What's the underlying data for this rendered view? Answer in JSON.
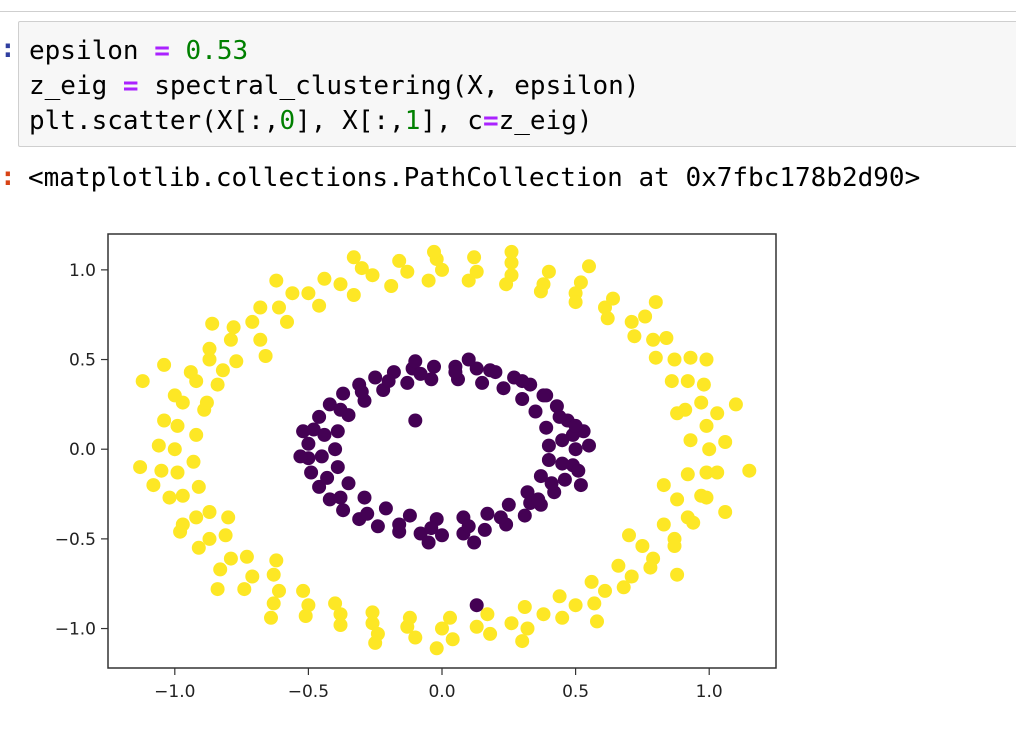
{
  "notebook": {
    "input_cell": {
      "lines": [
        [
          {
            "t": "epsilon "
          },
          {
            "t": "=",
            "c": "op"
          },
          {
            "t": " "
          },
          {
            "t": "0.53",
            "c": "num"
          }
        ],
        [
          {
            "t": "z_eig "
          },
          {
            "t": "=",
            "c": "op"
          },
          {
            "t": " spectral_clustering(X, epsilon)"
          }
        ],
        [
          {
            "t": "plt.scatter(X[:,"
          },
          {
            "t": "0",
            "c": "num"
          },
          {
            "t": "], X[:,"
          },
          {
            "t": "1",
            "c": "num"
          },
          {
            "t": "], c"
          },
          {
            "t": "=",
            "c": "op"
          },
          {
            "t": "z_eig)"
          }
        ]
      ]
    },
    "output_text": "<matplotlib.collections.PathCollection at 0x7fbc178b2d90>"
  },
  "colors": {
    "inner_cluster": "#440154",
    "outer_cluster": "#fde725"
  },
  "chart_data": {
    "type": "scatter",
    "title": "",
    "xlabel": "",
    "ylabel": "",
    "xlim": [
      -1.25,
      1.25
    ],
    "ylim": [
      -1.22,
      1.2
    ],
    "x_ticks": [
      -1.0,
      -0.5,
      0.0,
      0.5,
      1.0
    ],
    "y_ticks": [
      1.0,
      0.5,
      0.0,
      -0.5,
      -1.0
    ],
    "x_tick_labels": [
      "−1.0",
      "−0.5",
      "0.0",
      "0.5",
      "1.0"
    ],
    "y_tick_labels": [
      "1.0",
      "0.5",
      "0.0",
      "−0.5",
      "−1.0"
    ],
    "grid": false,
    "series": [
      {
        "color": "#fde725",
        "points": [
          [
            1.0,
            0.0
          ],
          [
            0.99,
            0.13
          ],
          [
            0.97,
            0.26
          ],
          [
            0.92,
            0.38
          ],
          [
            0.87,
            0.5
          ],
          [
            0.79,
            0.61
          ],
          [
            0.71,
            0.71
          ],
          [
            0.61,
            0.79
          ],
          [
            0.5,
            0.87
          ],
          [
            0.38,
            0.92
          ],
          [
            0.26,
            0.97
          ],
          [
            0.13,
            0.99
          ],
          [
            0.0,
            1.0
          ],
          [
            -0.13,
            0.99
          ],
          [
            -0.26,
            0.97
          ],
          [
            -0.38,
            0.92
          ],
          [
            -0.5,
            0.87
          ],
          [
            -0.61,
            0.79
          ],
          [
            -0.71,
            0.71
          ],
          [
            -0.79,
            0.61
          ],
          [
            -0.87,
            0.5
          ],
          [
            -0.92,
            0.38
          ],
          [
            -0.97,
            0.26
          ],
          [
            -0.99,
            0.13
          ],
          [
            -1.0,
            0.0
          ],
          [
            -0.99,
            -0.13
          ],
          [
            -0.97,
            -0.26
          ],
          [
            -0.92,
            -0.38
          ],
          [
            -0.87,
            -0.5
          ],
          [
            -0.79,
            -0.61
          ],
          [
            -0.71,
            -0.71
          ],
          [
            -0.61,
            -0.79
          ],
          [
            -0.5,
            -0.87
          ],
          [
            -0.38,
            -0.92
          ],
          [
            -0.26,
            -0.97
          ],
          [
            -0.13,
            -0.99
          ],
          [
            0.0,
            -1.0
          ],
          [
            0.13,
            -0.99
          ],
          [
            0.26,
            -0.97
          ],
          [
            0.38,
            -0.92
          ],
          [
            0.5,
            -0.87
          ],
          [
            0.61,
            -0.79
          ],
          [
            0.71,
            -0.71
          ],
          [
            0.79,
            -0.61
          ],
          [
            0.87,
            -0.5
          ],
          [
            0.92,
            -0.38
          ],
          [
            0.97,
            -0.26
          ],
          [
            0.99,
            -0.13
          ],
          [
            1.06,
            0.04
          ],
          [
            1.03,
            0.2
          ],
          [
            0.98,
            0.36
          ],
          [
            0.93,
            0.51
          ],
          [
            0.84,
            0.62
          ],
          [
            0.76,
            0.74
          ],
          [
            0.64,
            0.84
          ],
          [
            0.52,
            0.93
          ],
          [
            0.4,
            0.99
          ],
          [
            0.26,
            1.04
          ],
          [
            0.12,
            1.07
          ],
          [
            -0.02,
            1.06
          ],
          [
            -0.16,
            1.05
          ],
          [
            -0.3,
            1.01
          ],
          [
            -0.44,
            0.95
          ],
          [
            -0.56,
            0.87
          ],
          [
            -0.68,
            0.79
          ],
          [
            -0.78,
            0.68
          ],
          [
            -0.87,
            0.56
          ],
          [
            -0.94,
            0.43
          ],
          [
            -1.0,
            0.3
          ],
          [
            -1.04,
            0.16
          ],
          [
            -1.06,
            0.02
          ],
          [
            -1.05,
            -0.12
          ],
          [
            -1.02,
            -0.27
          ],
          [
            -0.97,
            -0.42
          ],
          [
            -0.91,
            -0.55
          ],
          [
            -0.83,
            -0.67
          ],
          [
            -0.74,
            -0.78
          ],
          [
            -0.63,
            -0.86
          ],
          [
            -0.51,
            -0.93
          ],
          [
            -0.38,
            -0.98
          ],
          [
            -0.24,
            -1.03
          ],
          [
            -0.1,
            -1.05
          ],
          [
            0.04,
            -1.06
          ],
          [
            0.18,
            -1.03
          ],
          [
            0.32,
            -1.0
          ],
          [
            0.45,
            -0.94
          ],
          [
            0.57,
            -0.86
          ],
          [
            0.68,
            -0.77
          ],
          [
            0.78,
            -0.66
          ],
          [
            0.87,
            -0.54
          ],
          [
            0.94,
            -0.41
          ],
          [
            0.99,
            -0.27
          ],
          [
            1.03,
            -0.13
          ],
          [
            0.93,
            0.05
          ],
          [
            0.91,
            0.22
          ],
          [
            0.86,
            0.38
          ],
          [
            0.8,
            0.51
          ],
          [
            0.72,
            0.63
          ],
          [
            0.62,
            0.73
          ],
          [
            0.5,
            0.82
          ],
          [
            0.37,
            0.88
          ],
          [
            0.24,
            0.92
          ],
          [
            0.1,
            0.94
          ],
          [
            -0.05,
            0.94
          ],
          [
            -0.19,
            0.91
          ],
          [
            -0.33,
            0.86
          ],
          [
            -0.46,
            0.8
          ],
          [
            -0.58,
            0.71
          ],
          [
            -0.68,
            0.61
          ],
          [
            -0.77,
            0.49
          ],
          [
            -0.84,
            0.36
          ],
          [
            -0.89,
            0.22
          ],
          [
            -0.92,
            0.08
          ],
          [
            -0.93,
            -0.07
          ],
          [
            -0.91,
            -0.21
          ],
          [
            -0.87,
            -0.35
          ],
          [
            -0.81,
            -0.48
          ],
          [
            -0.73,
            -0.6
          ],
          [
            -0.63,
            -0.7
          ],
          [
            -0.52,
            -0.79
          ],
          [
            -0.4,
            -0.86
          ],
          [
            -0.26,
            -0.91
          ],
          [
            -0.12,
            -0.94
          ],
          [
            0.03,
            -0.94
          ],
          [
            0.17,
            -0.92
          ],
          [
            0.31,
            -0.88
          ],
          [
            0.44,
            -0.82
          ],
          [
            0.56,
            -0.74
          ],
          [
            0.66,
            -0.65
          ],
          [
            0.75,
            -0.54
          ],
          [
            0.83,
            -0.42
          ],
          [
            0.88,
            -0.28
          ],
          [
            0.92,
            -0.14
          ],
          [
            -1.12,
            0.38
          ],
          [
            -1.13,
            -0.1
          ],
          [
            -1.08,
            -0.2
          ],
          [
            -0.98,
            -0.46
          ],
          [
            -0.84,
            -0.78
          ],
          [
            -0.64,
            -0.94
          ],
          [
            -0.25,
            -1.08
          ],
          [
            -0.02,
            -1.11
          ],
          [
            0.3,
            -1.07
          ],
          [
            0.58,
            -0.96
          ],
          [
            0.88,
            -0.7
          ],
          [
            1.06,
            -0.35
          ],
          [
            1.15,
            -0.12
          ],
          [
            1.1,
            0.25
          ],
          [
            0.99,
            0.5
          ],
          [
            0.8,
            0.82
          ],
          [
            0.55,
            1.02
          ],
          [
            0.26,
            1.1
          ],
          [
            -0.03,
            1.1
          ],
          [
            -0.33,
            1.07
          ],
          [
            -0.62,
            0.94
          ],
          [
            -0.86,
            0.7
          ],
          [
            -1.04,
            0.47
          ],
          [
            -0.88,
            0.26
          ],
          [
            -0.82,
            0.44
          ],
          [
            -0.66,
            0.52
          ],
          [
            0.88,
            0.2
          ],
          [
            0.83,
            -0.2
          ],
          [
            0.7,
            -0.48
          ],
          [
            -0.8,
            -0.38
          ],
          [
            -0.62,
            -0.62
          ]
        ]
      },
      {
        "color": "#440154",
        "points": [
          [
            0.5,
            0.0
          ],
          [
            0.49,
            0.08
          ],
          [
            0.47,
            0.16
          ],
          [
            0.43,
            0.24
          ],
          [
            0.38,
            0.3
          ],
          [
            0.33,
            0.36
          ],
          [
            0.27,
            0.4
          ],
          [
            0.2,
            0.43
          ],
          [
            0.13,
            0.45
          ],
          [
            0.05,
            0.46
          ],
          [
            -0.03,
            0.46
          ],
          [
            -0.11,
            0.45
          ],
          [
            -0.18,
            0.43
          ],
          [
            -0.25,
            0.4
          ],
          [
            -0.31,
            0.36
          ],
          [
            -0.37,
            0.31
          ],
          [
            -0.42,
            0.25
          ],
          [
            -0.46,
            0.18
          ],
          [
            -0.48,
            0.11
          ],
          [
            -0.5,
            0.03
          ],
          [
            -0.5,
            -0.05
          ],
          [
            -0.49,
            -0.13
          ],
          [
            -0.46,
            -0.21
          ],
          [
            -0.42,
            -0.28
          ],
          [
            -0.37,
            -0.34
          ],
          [
            -0.31,
            -0.39
          ],
          [
            -0.24,
            -0.43
          ],
          [
            -0.16,
            -0.46
          ],
          [
            -0.08,
            -0.47
          ],
          [
            0.0,
            -0.48
          ],
          [
            0.08,
            -0.47
          ],
          [
            0.16,
            -0.45
          ],
          [
            0.24,
            -0.42
          ],
          [
            0.31,
            -0.37
          ],
          [
            0.37,
            -0.31
          ],
          [
            0.42,
            -0.24
          ],
          [
            0.46,
            -0.17
          ],
          [
            0.49,
            -0.09
          ],
          [
            0.4,
            0.02
          ],
          [
            0.39,
            0.12
          ],
          [
            0.35,
            0.21
          ],
          [
            0.3,
            0.28
          ],
          [
            0.23,
            0.34
          ],
          [
            0.15,
            0.37
          ],
          [
            0.06,
            0.39
          ],
          [
            -0.04,
            0.39
          ],
          [
            -0.13,
            0.37
          ],
          [
            -0.22,
            0.33
          ],
          [
            -0.29,
            0.27
          ],
          [
            -0.35,
            0.19
          ],
          [
            -0.39,
            0.1
          ],
          [
            -0.4,
            0.0
          ],
          [
            -0.39,
            -0.1
          ],
          [
            -0.35,
            -0.19
          ],
          [
            -0.29,
            -0.27
          ],
          [
            -0.21,
            -0.33
          ],
          [
            -0.12,
            -0.37
          ],
          [
            -0.02,
            -0.39
          ],
          [
            0.08,
            -0.38
          ],
          [
            0.17,
            -0.36
          ],
          [
            0.25,
            -0.31
          ],
          [
            0.32,
            -0.24
          ],
          [
            0.37,
            -0.15
          ],
          [
            0.4,
            -0.06
          ],
          [
            0.45,
            0.05
          ],
          [
            0.44,
            0.18
          ],
          [
            0.39,
            0.3
          ],
          [
            0.3,
            0.38
          ],
          [
            0.18,
            0.44
          ],
          [
            0.05,
            0.43
          ],
          [
            -0.08,
            0.42
          ],
          [
            -0.2,
            0.38
          ],
          [
            -0.3,
            0.32
          ],
          [
            -0.38,
            0.22
          ],
          [
            -0.44,
            0.08
          ],
          [
            -0.45,
            -0.04
          ],
          [
            -0.43,
            -0.16
          ],
          [
            -0.38,
            -0.27
          ],
          [
            -0.28,
            -0.36
          ],
          [
            -0.16,
            -0.42
          ],
          [
            -0.04,
            -0.44
          ],
          [
            0.1,
            -0.43
          ],
          [
            0.22,
            -0.38
          ],
          [
            0.33,
            -0.3
          ],
          [
            0.41,
            -0.19
          ],
          [
            0.45,
            -0.08
          ],
          [
            0.53,
            0.1
          ],
          [
            0.51,
            -0.12
          ],
          [
            0.55,
            0.02
          ],
          [
            -0.52,
            0.1
          ],
          [
            -0.53,
            -0.04
          ],
          [
            -0.1,
            0.49
          ],
          [
            0.1,
            0.5
          ],
          [
            -0.05,
            -0.52
          ],
          [
            0.12,
            -0.52
          ],
          [
            0.52,
            -0.2
          ],
          [
            -0.1,
            0.16
          ],
          [
            0.5,
            0.13
          ],
          [
            0.13,
            -0.87
          ],
          [
            0.36,
            -0.28
          ]
        ]
      }
    ]
  }
}
